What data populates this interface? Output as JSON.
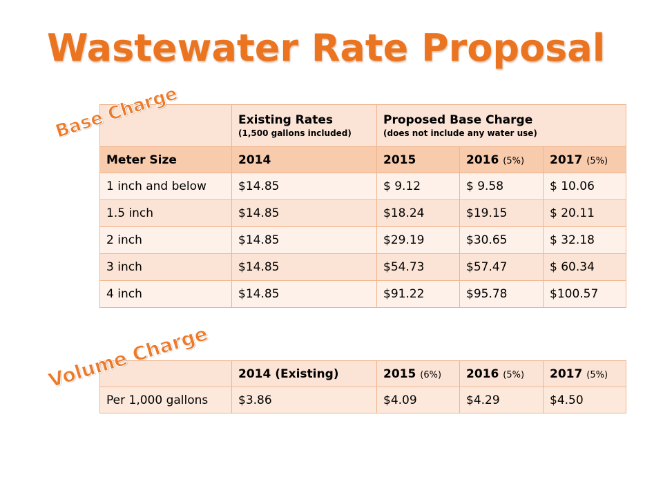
{
  "title": "Wastewater Rate Proposal",
  "labels": {
    "base": "Base Charge",
    "volume": "Volume Charge"
  },
  "base_table": {
    "header": {
      "existing_title": "Existing Rates",
      "existing_note": "(1,500 gallons included)",
      "proposed_title": "Proposed Base Charge",
      "proposed_note": "(does not include any water use)"
    },
    "year_row": {
      "meter_size": "Meter Size",
      "y2014": "2014",
      "y2015": "2015",
      "y2016": "2016",
      "y2016_pct": "(5%)",
      "y2017": "2017",
      "y2017_pct": "(5%)"
    },
    "rows": [
      {
        "size": "1 inch and below",
        "c2014": "$14.85",
        "c2015": "$  9.12",
        "c2016": "$  9.58",
        "c2017": "$  10.06"
      },
      {
        "size": "1.5 inch",
        "c2014": "$14.85",
        "c2015": "$18.24",
        "c2016": "$19.15",
        "c2017": "$  20.11"
      },
      {
        "size": "2 inch",
        "c2014": "$14.85",
        "c2015": "$29.19",
        "c2016": "$30.65",
        "c2017": "$  32.18"
      },
      {
        "size": "3 inch",
        "c2014": "$14.85",
        "c2015": "$54.73",
        "c2016": "$57.47",
        "c2017": "$  60.34"
      },
      {
        "size": "4 inch",
        "c2014": "$14.85",
        "c2015": "$91.22",
        "c2016": "$95.78",
        "c2017": "$100.57"
      }
    ]
  },
  "volume_table": {
    "header": {
      "y2014": "2014",
      "y2014_note": "(Existing)",
      "y2015": "2015",
      "y2015_pct": "(6%)",
      "y2016": "2016",
      "y2016_pct": "(5%)",
      "y2017": "2017",
      "y2017_pct": "(5%)"
    },
    "row": {
      "label": "Per 1,000 gallons",
      "c2014": "$3.86",
      "c2015": "$4.09",
      "c2016": "$4.29",
      "c2017": "$4.50"
    }
  },
  "colors": {
    "title": "#ea7420",
    "header_fill": "#f8cbad",
    "row_fill": "#fdf1ea",
    "border": "#f0b48c"
  }
}
